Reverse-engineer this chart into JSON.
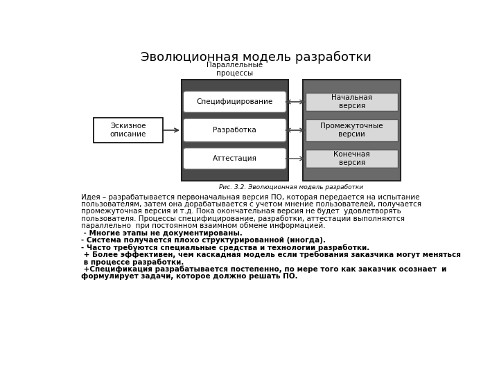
{
  "title": "Эволюционная модель разработки",
  "title_fontsize": 13,
  "fig_caption": "Рис. 3.2. Эволюционная модель разработки",
  "parallel_label": "Параллельные\nпроцессы",
  "sketch_box_label": "Эскизное\nописание",
  "left_boxes": [
    "Специфицирование",
    "Разработка",
    "Аттестация"
  ],
  "right_boxes": [
    "Начальная\nверсия",
    "Промежуточные\nверсии",
    "Конечная\nверсия"
  ],
  "body_text": [
    {
      "text": "Идея – разрабатывается первоначальная версия ПО, которая передается на испытание",
      "bold": false
    },
    {
      "text": "пользователям, затем она дорабатывается с учетом мнение пользователей, получается",
      "bold": false
    },
    {
      "text": "промежуточная версия и т.д. Пока окончательная версия не будет  удовлетворять",
      "bold": false
    },
    {
      "text": "пользователя. Процессы специфицирование, разработки, аттестации выполняются",
      "bold": false
    },
    {
      "text": "параллельно  при постоянном взаимном обмене информацией.",
      "bold": false
    },
    {
      "text": " - Многие этапы не документированы.",
      "bold": true
    },
    {
      "text": "- Система получается плохо структурированной (иногда).",
      "bold": true
    },
    {
      "text": "- Часто требуются специальные средства и технологии разработки.",
      "bold": true
    },
    {
      "text": " + Более эффективен, чем каскадная модель если требования заказчика могут меняться",
      "bold": true
    },
    {
      "text": " в процессе разработки.",
      "bold": true
    },
    {
      "text": " +Спецификация разрабатывается постепенно, по мере того как заказчик осознает  и",
      "bold": true
    },
    {
      "text": "формулирует задачи, которое должно решать ПО.",
      "bold": true
    }
  ],
  "bg_color": "#ffffff",
  "mid_panel_color": "#4a4a4a",
  "right_panel_color": "#6a6a6a",
  "left_box_fill": "#ffffff",
  "right_box_fill": "#d8d8d8",
  "sketch_box_fill": "#ffffff"
}
